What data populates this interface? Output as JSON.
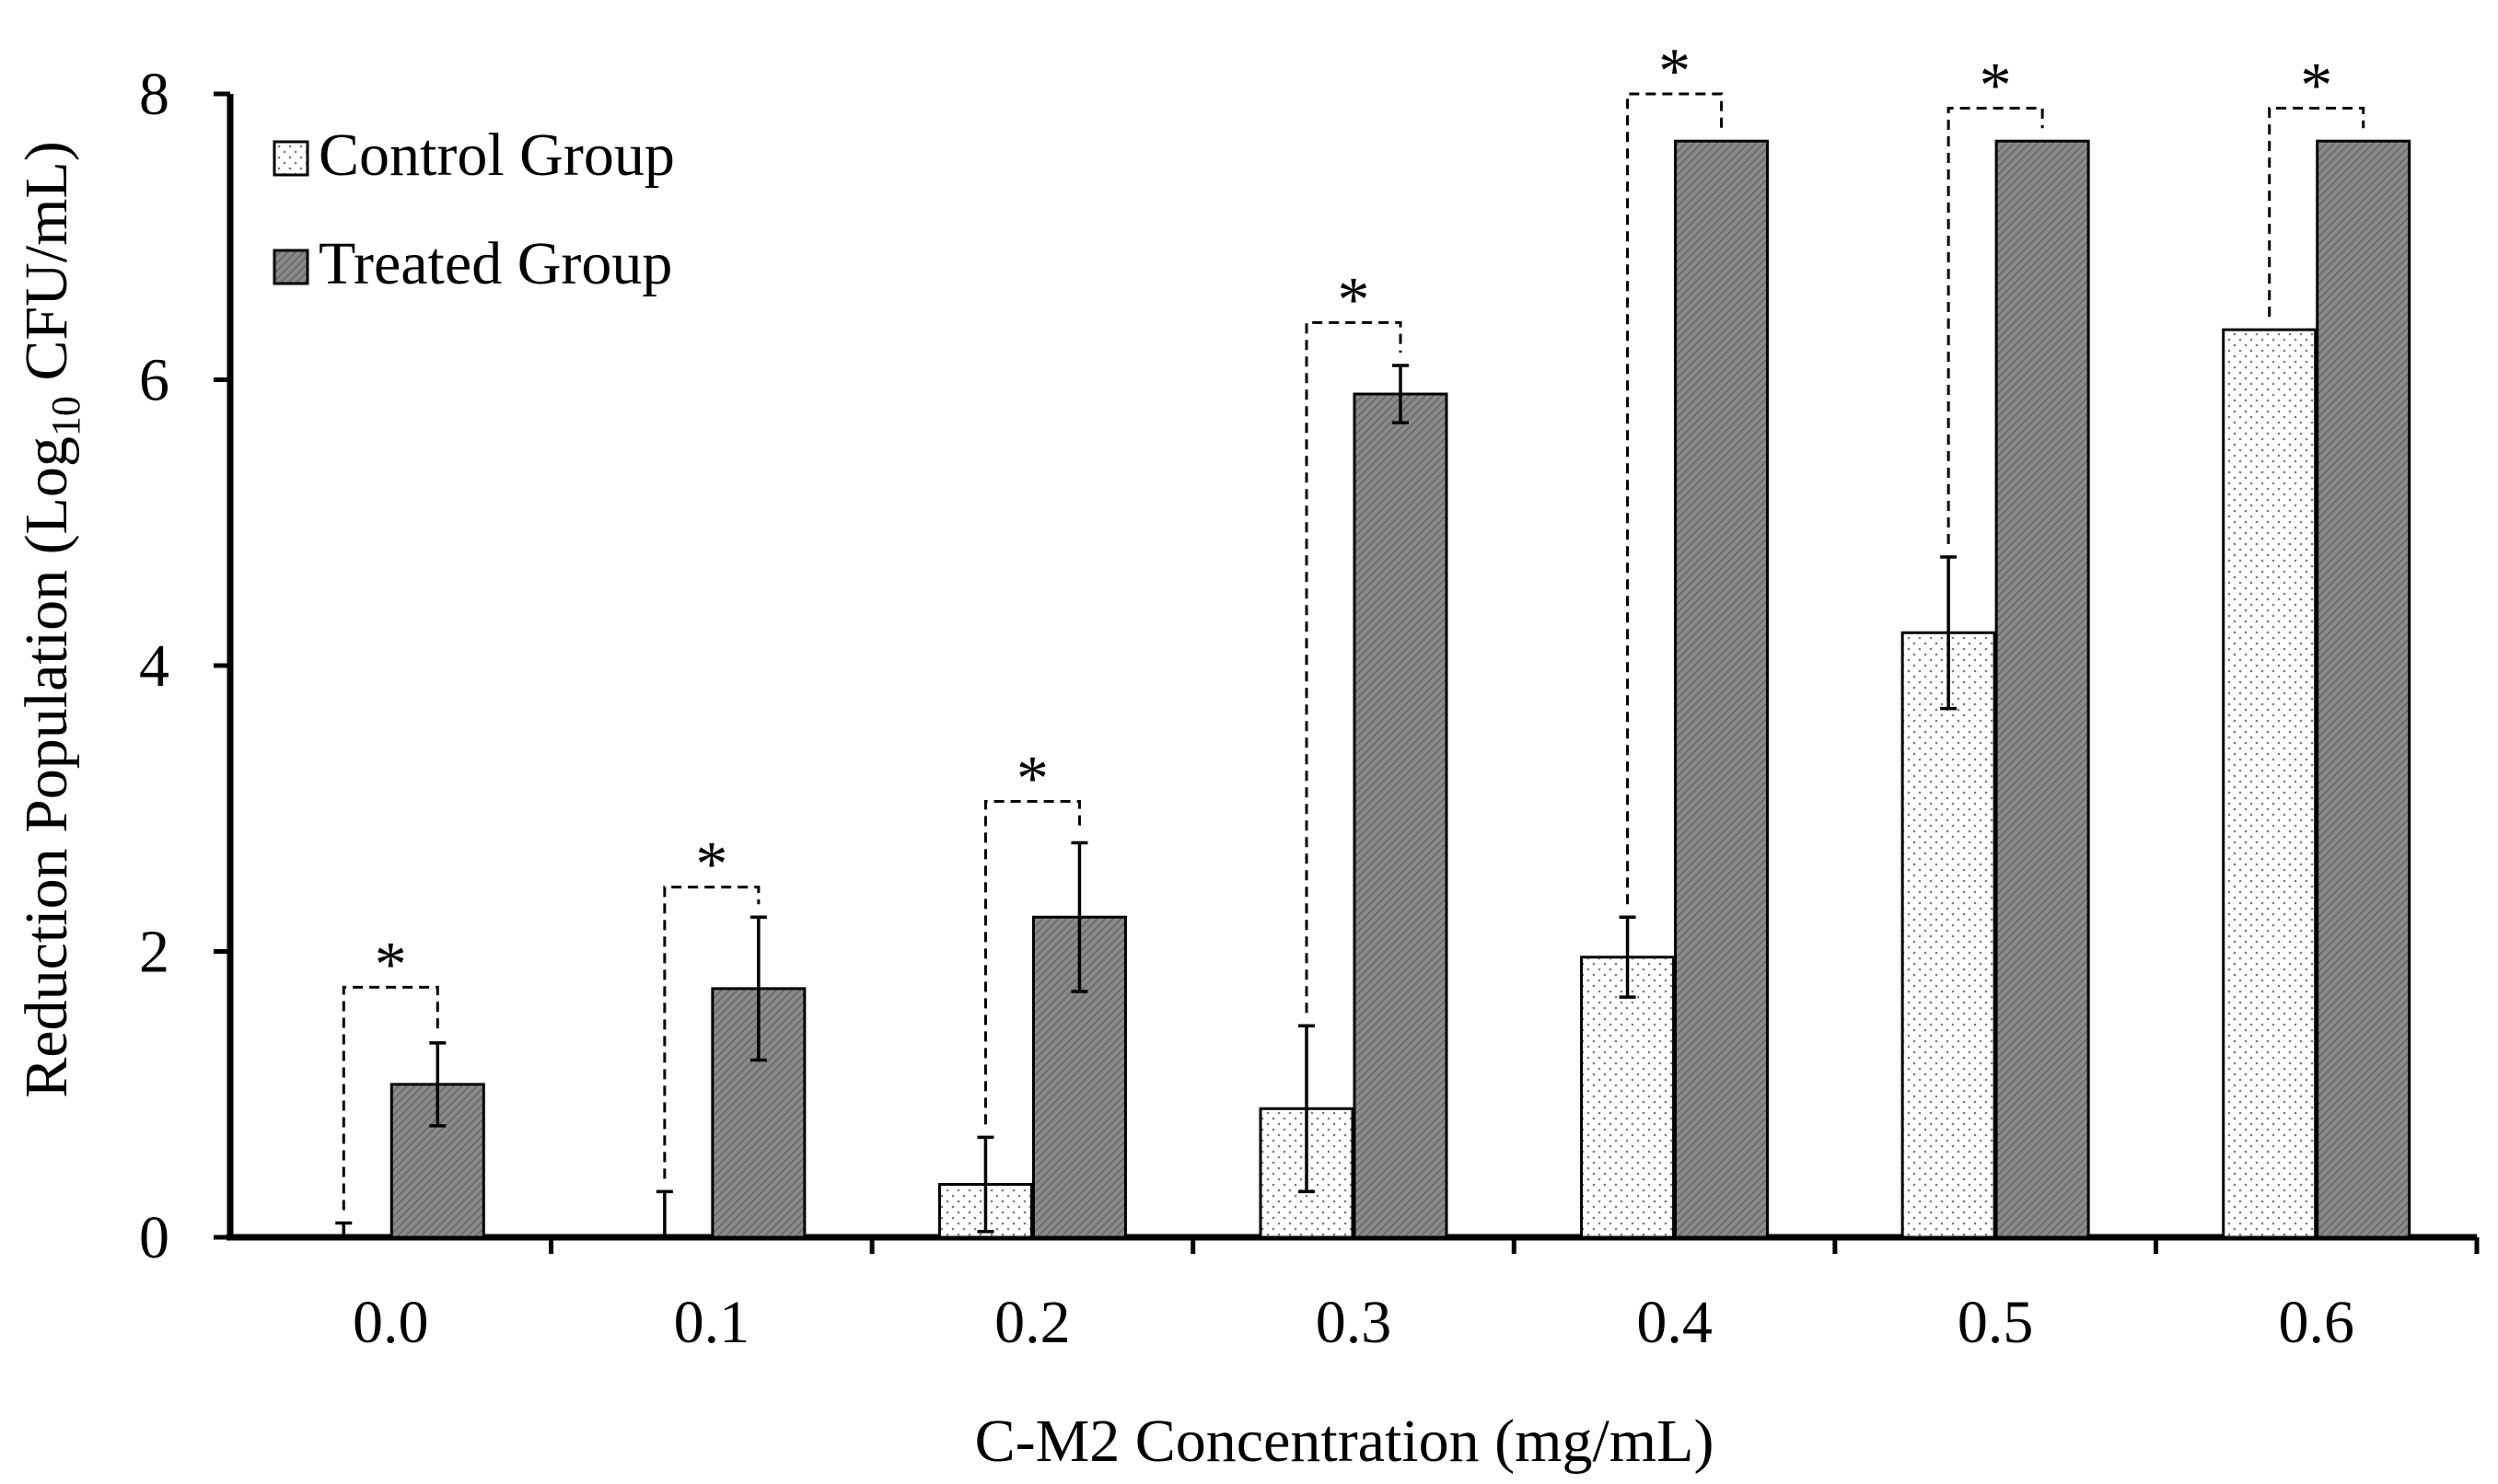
{
  "chart_data": {
    "type": "bar",
    "title": "",
    "xlabel": "C-M2 Concentration (mg/mL)",
    "ylabel": {
      "prefix": "Reduction Population (Log",
      "subscript": "10",
      "suffix": " CFU/mL)"
    },
    "ylim": [
      0,
      8
    ],
    "yticks": [
      "0",
      "2",
      "4",
      "6",
      "8"
    ],
    "categories": [
      "0.0",
      "0.1",
      "0.2",
      "0.3",
      "0.4",
      "0.5",
      "0.6"
    ],
    "series": [
      {
        "name": "Control Group",
        "values": [
          0.0,
          0.0,
          0.37,
          0.9,
          1.96,
          4.23,
          6.35
        ],
        "errors": [
          0.1,
          0.32,
          0.33,
          0.58,
          0.28,
          0.53,
          0.0
        ],
        "color": "#ffffff"
      },
      {
        "name": "Treated Group",
        "values": [
          1.07,
          1.74,
          2.24,
          5.9,
          7.67,
          7.67,
          7.67
        ],
        "errors": [
          0.29,
          0.5,
          0.52,
          0.2,
          0.0,
          0.0,
          0.0
        ],
        "color": "#8c8c8c"
      }
    ],
    "significance": {
      "marker": "*",
      "bracket_tops": [
        1.75,
        2.45,
        3.05,
        6.4,
        8.0,
        7.9,
        7.9
      ]
    },
    "legend": {
      "position": "top-left",
      "entries": [
        "Control Group",
        "Treated Group"
      ]
    },
    "grid": false
  }
}
